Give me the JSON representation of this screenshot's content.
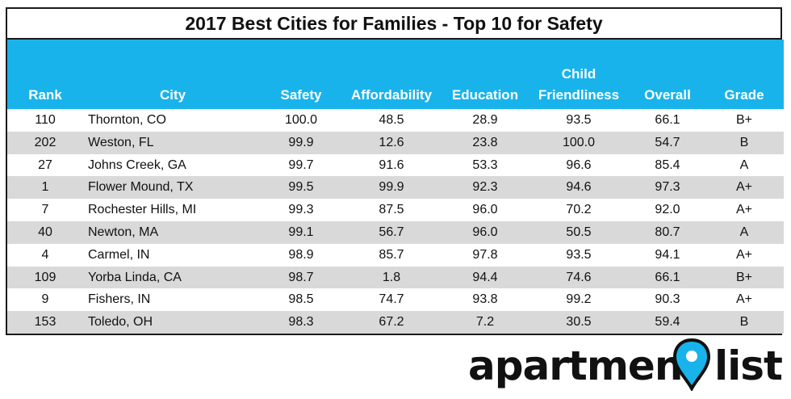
{
  "title": "2017 Best Cities for Families - Top 10 for Safety",
  "headers": {
    "rank": "Rank",
    "city": "City",
    "safety": "Safety",
    "affordability": "Affordability",
    "education": "Education",
    "child_line1": "Child",
    "child_line2": "Friendliness",
    "overall": "Overall",
    "grade": "Grade"
  },
  "chart_data": {
    "type": "table",
    "columns": [
      "Rank",
      "City",
      "Safety",
      "Affordability",
      "Education",
      "Child Friendliness",
      "Overall",
      "Grade"
    ],
    "rows": [
      {
        "rank": "110",
        "city": "Thornton, CO",
        "safety": "100.0",
        "affordability": "48.5",
        "education": "28.9",
        "child": "93.5",
        "overall": "66.1",
        "grade": "B+"
      },
      {
        "rank": "202",
        "city": "Weston, FL",
        "safety": "99.9",
        "affordability": "12.6",
        "education": "23.8",
        "child": "100.0",
        "overall": "54.7",
        "grade": "B"
      },
      {
        "rank": "27",
        "city": "Johns Creek, GA",
        "safety": "99.7",
        "affordability": "91.6",
        "education": "53.3",
        "child": "96.6",
        "overall": "85.4",
        "grade": "A"
      },
      {
        "rank": "1",
        "city": "Flower Mound, TX",
        "safety": "99.5",
        "affordability": "99.9",
        "education": "92.3",
        "child": "94.6",
        "overall": "97.3",
        "grade": "A+"
      },
      {
        "rank": "7",
        "city": "Rochester Hills, MI",
        "safety": "99.3",
        "affordability": "87.5",
        "education": "96.0",
        "child": "70.2",
        "overall": "92.0",
        "grade": "A+"
      },
      {
        "rank": "40",
        "city": "Newton, MA",
        "safety": "99.1",
        "affordability": "56.7",
        "education": "96.0",
        "child": "50.5",
        "overall": "80.7",
        "grade": "A"
      },
      {
        "rank": "4",
        "city": "Carmel, IN",
        "safety": "98.9",
        "affordability": "85.7",
        "education": "97.8",
        "child": "93.5",
        "overall": "94.1",
        "grade": "A+"
      },
      {
        "rank": "109",
        "city": "Yorba Linda, CA",
        "safety": "98.7",
        "affordability": "1.8",
        "education": "94.4",
        "child": "74.6",
        "overall": "66.1",
        "grade": "B+"
      },
      {
        "rank": "9",
        "city": "Fishers, IN",
        "safety": "98.5",
        "affordability": "74.7",
        "education": "93.8",
        "child": "99.2",
        "overall": "90.3",
        "grade": "A+"
      },
      {
        "rank": "153",
        "city": "Toledo, OH",
        "safety": "98.3",
        "affordability": "67.2",
        "education": "7.2",
        "child": "30.5",
        "overall": "59.4",
        "grade": "B"
      }
    ]
  },
  "logo": {
    "text_left": "apartment",
    "text_right": "list",
    "pin_color": "#19b3ec",
    "pin_outline": "#111111"
  },
  "colors": {
    "header_bg": "#19b3ec",
    "stripe": "#d9d9d9"
  }
}
